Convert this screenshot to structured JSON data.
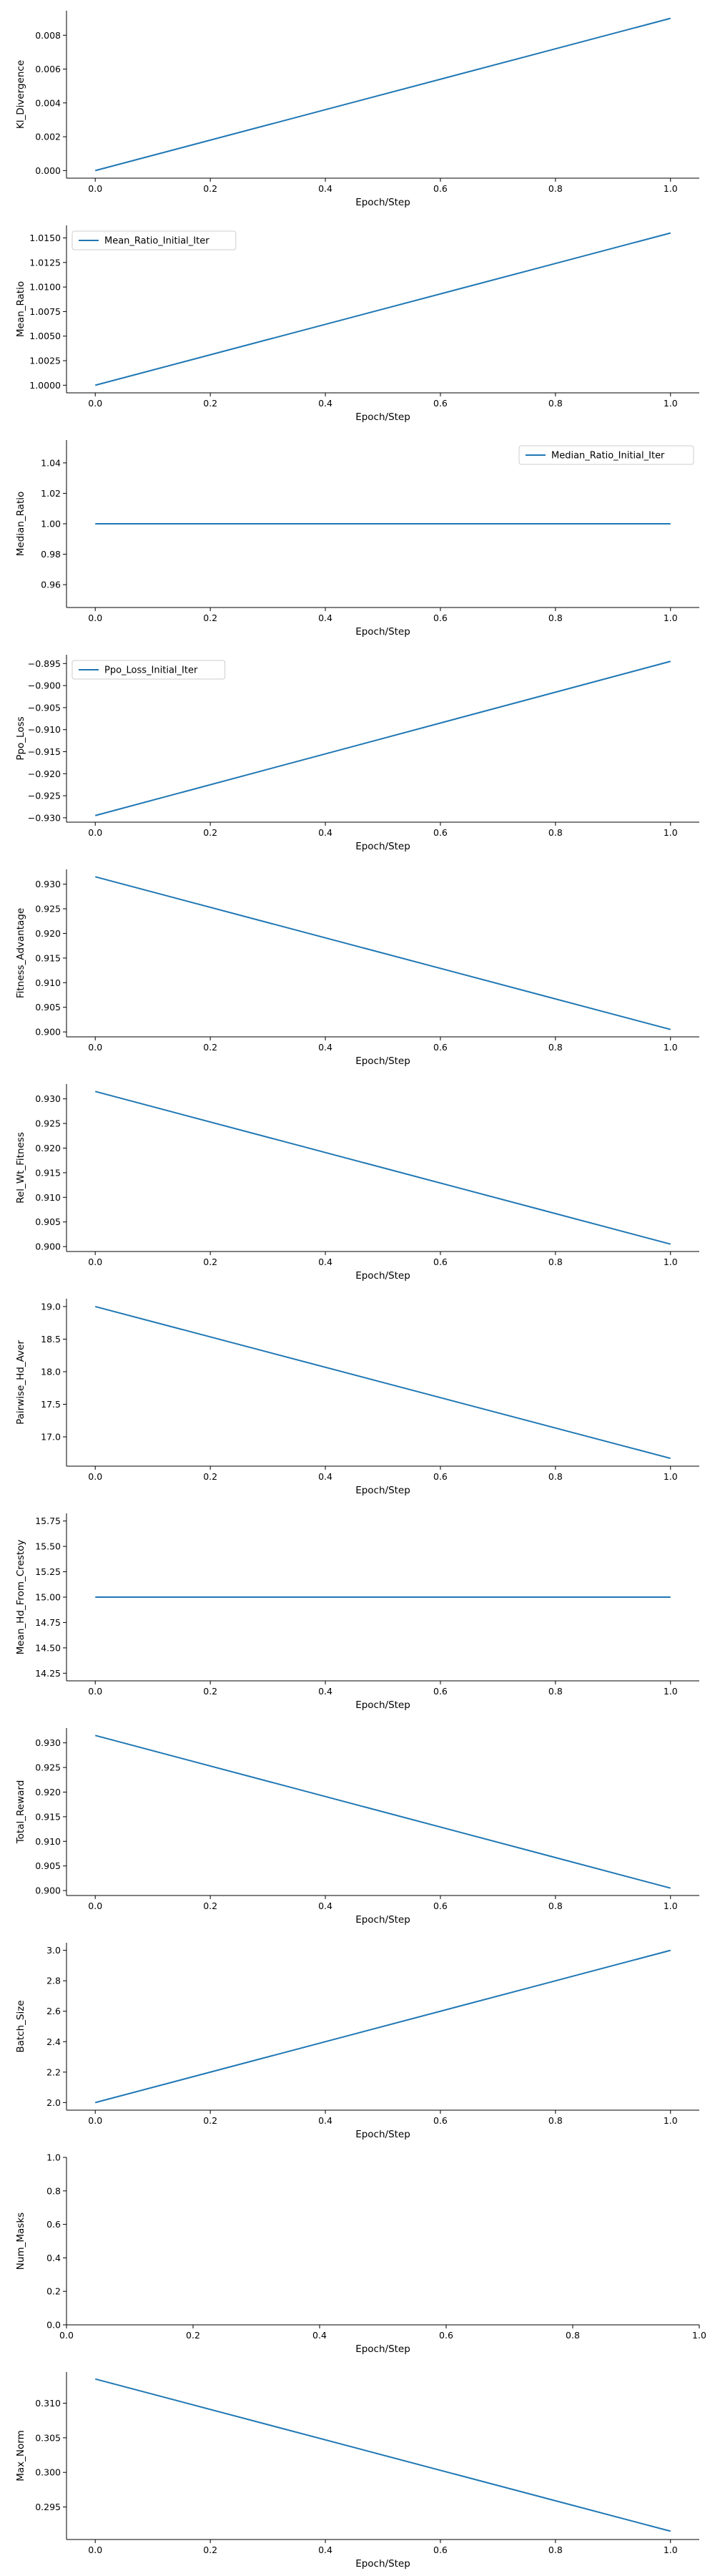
{
  "style": {
    "line_color": "#1f77b4",
    "axis_color": "#000000",
    "background": "#ffffff"
  },
  "chart_data": [
    {
      "type": "line",
      "xlabel": "Epoch/Step",
      "ylabel": "Kl_Divergence",
      "x": [
        0.0,
        1.0
      ],
      "series": [
        {
          "values": [
            0.0,
            0.009
          ]
        }
      ],
      "xlim": [
        -0.05,
        1.05
      ],
      "ylim": [
        -0.00045,
        0.00945
      ],
      "xticks": [
        0.0,
        0.2,
        0.4,
        0.6,
        0.8,
        1.0
      ],
      "xtick_labels": [
        "0.0",
        "0.2",
        "0.4",
        "0.6",
        "0.8",
        "1.0"
      ],
      "yticks": [
        0.0,
        0.002,
        0.004,
        0.006,
        0.008
      ],
      "ytick_labels": [
        "0.000",
        "0.002",
        "0.004",
        "0.006",
        "0.008"
      ],
      "legend": null
    },
    {
      "type": "line",
      "xlabel": "Epoch/Step",
      "ylabel": "Mean_Ratio",
      "x": [
        0.0,
        1.0
      ],
      "series": [
        {
          "name": "Mean_Ratio_Initial_Iter",
          "values": [
            1.0,
            1.0155
          ]
        }
      ],
      "xlim": [
        -0.05,
        1.05
      ],
      "ylim": [
        0.999225,
        1.016275
      ],
      "xticks": [
        0.0,
        0.2,
        0.4,
        0.6,
        0.8,
        1.0
      ],
      "xtick_labels": [
        "0.0",
        "0.2",
        "0.4",
        "0.6",
        "0.8",
        "1.0"
      ],
      "yticks": [
        1.0,
        1.0025,
        1.005,
        1.0075,
        1.01,
        1.0125,
        1.015
      ],
      "ytick_labels": [
        "1.0000",
        "1.0025",
        "1.0050",
        "1.0075",
        "1.0100",
        "1.0125",
        "1.0150"
      ],
      "legend": "upper-left"
    },
    {
      "type": "line",
      "xlabel": "Epoch/Step",
      "ylabel": "Median_Ratio",
      "x": [
        0.0,
        1.0
      ],
      "series": [
        {
          "name": "Median_Ratio_Initial_Iter",
          "values": [
            1.0,
            1.0
          ]
        }
      ],
      "xlim": [
        -0.05,
        1.05
      ],
      "ylim": [
        0.945,
        1.055
      ],
      "xticks": [
        0.0,
        0.2,
        0.4,
        0.6,
        0.8,
        1.0
      ],
      "xtick_labels": [
        "0.0",
        "0.2",
        "0.4",
        "0.6",
        "0.8",
        "1.0"
      ],
      "yticks": [
        0.96,
        0.98,
        1.0,
        1.02,
        1.04
      ],
      "ytick_labels": [
        "0.96",
        "0.98",
        "1.00",
        "1.02",
        "1.04"
      ],
      "legend": "upper-right"
    },
    {
      "type": "line",
      "xlabel": "Epoch/Step",
      "ylabel": "Ppo_Loss",
      "x": [
        0.0,
        1.0
      ],
      "series": [
        {
          "name": "Ppo_Loss_Initial_Iter",
          "values": [
            -0.9295,
            -0.8945
          ]
        }
      ],
      "xlim": [
        -0.05,
        1.05
      ],
      "ylim": [
        -0.931,
        -0.893
      ],
      "xticks": [
        0.0,
        0.2,
        0.4,
        0.6,
        0.8,
        1.0
      ],
      "xtick_labels": [
        "0.0",
        "0.2",
        "0.4",
        "0.6",
        "0.8",
        "1.0"
      ],
      "yticks": [
        -0.93,
        -0.925,
        -0.92,
        -0.915,
        -0.91,
        -0.905,
        -0.9,
        -0.895
      ],
      "ytick_labels": [
        "−0.930",
        "−0.925",
        "−0.920",
        "−0.915",
        "−0.910",
        "−0.905",
        "−0.900",
        "−0.895"
      ],
      "legend": "upper-left"
    },
    {
      "type": "line",
      "xlabel": "Epoch/Step",
      "ylabel": "Fitness_Advantage",
      "x": [
        0.0,
        1.0
      ],
      "series": [
        {
          "values": [
            0.9315,
            0.9005
          ]
        }
      ],
      "xlim": [
        -0.05,
        1.05
      ],
      "ylim": [
        0.899,
        0.933
      ],
      "xticks": [
        0.0,
        0.2,
        0.4,
        0.6,
        0.8,
        1.0
      ],
      "xtick_labels": [
        "0.0",
        "0.2",
        "0.4",
        "0.6",
        "0.8",
        "1.0"
      ],
      "yticks": [
        0.9,
        0.905,
        0.91,
        0.915,
        0.92,
        0.925,
        0.93
      ],
      "ytick_labels": [
        "0.900",
        "0.905",
        "0.910",
        "0.915",
        "0.920",
        "0.925",
        "0.930"
      ],
      "legend": null
    },
    {
      "type": "line",
      "xlabel": "Epoch/Step",
      "ylabel": "Rel_Wt_Fitness",
      "x": [
        0.0,
        1.0
      ],
      "series": [
        {
          "values": [
            0.9315,
            0.9005
          ]
        }
      ],
      "xlim": [
        -0.05,
        1.05
      ],
      "ylim": [
        0.899,
        0.933
      ],
      "xticks": [
        0.0,
        0.2,
        0.4,
        0.6,
        0.8,
        1.0
      ],
      "xtick_labels": [
        "0.0",
        "0.2",
        "0.4",
        "0.6",
        "0.8",
        "1.0"
      ],
      "yticks": [
        0.9,
        0.905,
        0.91,
        0.915,
        0.92,
        0.925,
        0.93
      ],
      "ytick_labels": [
        "0.900",
        "0.905",
        "0.910",
        "0.915",
        "0.920",
        "0.925",
        "0.930"
      ],
      "legend": null
    },
    {
      "type": "line",
      "xlabel": "Epoch/Step",
      "ylabel": "Pairwise_Hd_Aver",
      "x": [
        0.0,
        1.0
      ],
      "series": [
        {
          "values": [
            19.0,
            16.67
          ]
        }
      ],
      "xlim": [
        -0.05,
        1.05
      ],
      "ylim": [
        16.55,
        19.12
      ],
      "xticks": [
        0.0,
        0.2,
        0.4,
        0.6,
        0.8,
        1.0
      ],
      "xtick_labels": [
        "0.0",
        "0.2",
        "0.4",
        "0.6",
        "0.8",
        "1.0"
      ],
      "yticks": [
        17.0,
        17.5,
        18.0,
        18.5,
        19.0
      ],
      "ytick_labels": [
        "17.0",
        "17.5",
        "18.0",
        "18.5",
        "19.0"
      ],
      "legend": null
    },
    {
      "type": "line",
      "xlabel": "Epoch/Step",
      "ylabel": "Mean_Hd_From_Crestoy",
      "x": [
        0.0,
        1.0
      ],
      "series": [
        {
          "values": [
            15.0,
            15.0
          ]
        }
      ],
      "xlim": [
        -0.05,
        1.05
      ],
      "ylim": [
        14.175,
        15.825
      ],
      "xticks": [
        0.0,
        0.2,
        0.4,
        0.6,
        0.8,
        1.0
      ],
      "xtick_labels": [
        "0.0",
        "0.2",
        "0.4",
        "0.6",
        "0.8",
        "1.0"
      ],
      "yticks": [
        14.25,
        14.5,
        14.75,
        15.0,
        15.25,
        15.5,
        15.75
      ],
      "ytick_labels": [
        "14.25",
        "14.50",
        "14.75",
        "15.00",
        "15.25",
        "15.50",
        "15.75"
      ],
      "legend": null
    },
    {
      "type": "line",
      "xlabel": "Epoch/Step",
      "ylabel": "Total_Reward",
      "x": [
        0.0,
        1.0
      ],
      "series": [
        {
          "values": [
            0.9315,
            0.9005
          ]
        }
      ],
      "xlim": [
        -0.05,
        1.05
      ],
      "ylim": [
        0.899,
        0.933
      ],
      "xticks": [
        0.0,
        0.2,
        0.4,
        0.6,
        0.8,
        1.0
      ],
      "xtick_labels": [
        "0.0",
        "0.2",
        "0.4",
        "0.6",
        "0.8",
        "1.0"
      ],
      "yticks": [
        0.9,
        0.905,
        0.91,
        0.915,
        0.92,
        0.925,
        0.93
      ],
      "ytick_labels": [
        "0.900",
        "0.905",
        "0.910",
        "0.915",
        "0.920",
        "0.925",
        "0.930"
      ],
      "legend": null
    },
    {
      "type": "line",
      "xlabel": "Epoch/Step",
      "ylabel": "Batch_Size",
      "x": [
        0.0,
        1.0
      ],
      "series": [
        {
          "values": [
            2.0,
            3.0
          ]
        }
      ],
      "xlim": [
        -0.05,
        1.05
      ],
      "ylim": [
        1.95,
        3.05
      ],
      "xticks": [
        0.0,
        0.2,
        0.4,
        0.6,
        0.8,
        1.0
      ],
      "xtick_labels": [
        "0.0",
        "0.2",
        "0.4",
        "0.6",
        "0.8",
        "1.0"
      ],
      "yticks": [
        2.0,
        2.2,
        2.4,
        2.6,
        2.8,
        3.0
      ],
      "ytick_labels": [
        "2.0",
        "2.2",
        "2.4",
        "2.6",
        "2.8",
        "3.0"
      ],
      "legend": null
    },
    {
      "type": "line",
      "xlabel": "Epoch/Step",
      "ylabel": "Num_Masks",
      "x": [],
      "series": [],
      "xlim": [
        0.0,
        1.0
      ],
      "ylim": [
        0.0,
        1.0
      ],
      "xticks": [
        0.0,
        0.2,
        0.4,
        0.6,
        0.8,
        1.0
      ],
      "xtick_labels": [
        "0.0",
        "0.2",
        "0.4",
        "0.6",
        "0.8",
        "1.0"
      ],
      "yticks": [
        0.0,
        0.2,
        0.4,
        0.6,
        0.8,
        1.0
      ],
      "ytick_labels": [
        "0.0",
        "0.2",
        "0.4",
        "0.6",
        "0.8",
        "1.0"
      ],
      "legend": null
    },
    {
      "type": "line",
      "xlabel": "Epoch/Step",
      "ylabel": "Max_Norm",
      "x": [
        0.0,
        1.0
      ],
      "series": [
        {
          "values": [
            0.3135,
            0.2915
          ]
        }
      ],
      "xlim": [
        -0.05,
        1.05
      ],
      "ylim": [
        0.2903,
        0.3145
      ],
      "xticks": [
        0.0,
        0.2,
        0.4,
        0.6,
        0.8,
        1.0
      ],
      "xtick_labels": [
        "0.0",
        "0.2",
        "0.4",
        "0.6",
        "0.8",
        "1.0"
      ],
      "yticks": [
        0.295,
        0.3,
        0.305,
        0.31
      ],
      "ytick_labels": [
        "0.295",
        "0.300",
        "0.305",
        "0.310"
      ],
      "legend": null
    }
  ]
}
